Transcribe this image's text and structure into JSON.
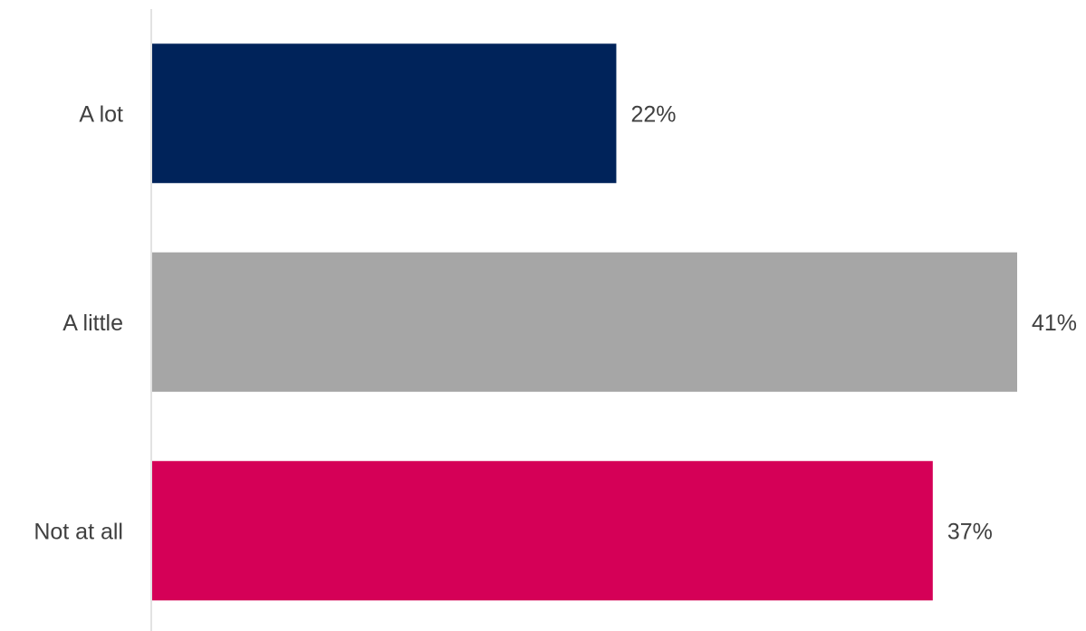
{
  "chart_data": {
    "type": "bar",
    "orientation": "horizontal",
    "categories": [
      "A lot",
      "A little",
      "Not at all"
    ],
    "values": [
      22,
      41,
      37
    ],
    "value_labels": [
      "22%",
      "41%",
      "37%"
    ],
    "bar_colors": [
      "#00235a",
      "#a6a6a6",
      "#d50057"
    ],
    "title": "",
    "xlabel": "",
    "ylabel": "",
    "xlim": [
      0,
      41
    ],
    "grid": false,
    "legend": "none"
  }
}
